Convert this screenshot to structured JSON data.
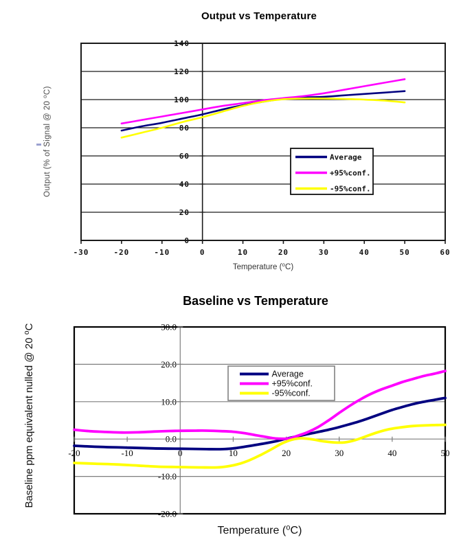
{
  "page": {
    "background": "#ffffff"
  },
  "chart_data": [
    {
      "id": "output-vs-temperature",
      "type": "line",
      "title": "Output vs Temperature",
      "xlabel": "Temperature (⁰C)",
      "ylabel": "Output (% of Signal @ 20 ⁰C)",
      "xlim": [
        -30,
        60
      ],
      "ylim": [
        0,
        140
      ],
      "grid": true,
      "legend_position": "inside-right",
      "x_ticks": [
        -30,
        -20,
        -10,
        0,
        10,
        20,
        30,
        40,
        50,
        60
      ],
      "x_tick_labels": [
        "-30",
        "-20",
        "-10",
        "0",
        "10",
        "20",
        "30",
        "40",
        "50",
        "60"
      ],
      "y_ticks": [
        0,
        20,
        40,
        60,
        80,
        100,
        120,
        140
      ],
      "y_tick_labels": [
        "0",
        "20",
        "40",
        "60",
        "80",
        "100",
        "120",
        "140"
      ],
      "series": [
        {
          "name": "Average",
          "color": "#000080",
          "x": [
            -20,
            -15,
            -10,
            -5,
            0,
            5,
            10,
            15,
            20,
            25,
            30,
            35,
            40,
            45,
            50
          ],
          "y": [
            78,
            81,
            83.5,
            86.5,
            89.5,
            93,
            96,
            98.5,
            100.5,
            101.5,
            102,
            103,
            104,
            105,
            106
          ]
        },
        {
          "name": "+95%conf.",
          "color": "#ff00ff",
          "x": [
            -20,
            -15,
            -10,
            -5,
            0,
            5,
            10,
            15,
            20,
            25,
            30,
            35,
            40,
            45,
            50
          ],
          "y": [
            83,
            85.5,
            88,
            90.5,
            93,
            95.5,
            97.5,
            99.5,
            101,
            102.5,
            104.5,
            107,
            109.5,
            112,
            114.5
          ]
        },
        {
          "name": "-95%conf.",
          "color": "#ffff00",
          "x": [
            -20,
            -15,
            -10,
            -5,
            0,
            5,
            10,
            15,
            20,
            25,
            30,
            35,
            40,
            45,
            50
          ],
          "y": [
            73,
            76.5,
            80,
            84,
            87.5,
            91.5,
            95.5,
            98.5,
            100.3,
            100.8,
            100.8,
            100.5,
            100,
            99.3,
            98
          ]
        }
      ]
    },
    {
      "id": "baseline-vs-temperature",
      "type": "line",
      "title": "Baseline vs Temperature",
      "xlabel": "Temperature (⁰C)",
      "ylabel": "Baseline ppm equivalent nulled @ 20 ⁰C",
      "xlim": [
        -20,
        50
      ],
      "ylim": [
        -20,
        30
      ],
      "grid": true,
      "legend_position": "inside-top-center",
      "x_ticks": [
        -20,
        -10,
        0,
        10,
        20,
        30,
        40,
        50
      ],
      "x_tick_labels": [
        "-20",
        "-10",
        "0",
        "10",
        "20",
        "30",
        "40",
        "50"
      ],
      "y_ticks": [
        30,
        20,
        10,
        0,
        -10,
        -20
      ],
      "y_tick_labels": [
        "30.0",
        "20.0",
        "10.0",
        "0.0",
        "-10.0",
        "-20.0"
      ],
      "series": [
        {
          "name": "Average",
          "color": "#000080",
          "x": [
            -20,
            -15,
            -10,
            -5,
            0,
            5,
            8,
            10,
            12,
            15,
            18,
            20,
            22,
            25,
            28,
            30,
            33,
            35,
            38,
            40,
            43,
            45,
            48,
            50
          ],
          "y": [
            -1.8,
            -2.1,
            -2.3,
            -2.5,
            -2.6,
            -2.7,
            -2.7,
            -2.5,
            -2.1,
            -1.4,
            -0.6,
            0.1,
            0.7,
            1.6,
            2.5,
            3.2,
            4.4,
            5.3,
            6.8,
            7.8,
            9.0,
            9.7,
            10.5,
            11.0
          ]
        },
        {
          "name": "+95%conf.",
          "color": "#ff00ff",
          "x": [
            -20,
            -17,
            -14,
            -11,
            -8,
            -5,
            -2,
            0,
            3,
            5,
            8,
            10,
            12,
            14,
            16,
            18,
            20,
            21,
            22,
            24,
            26,
            28,
            30,
            32,
            34,
            36,
            38,
            40,
            42,
            44,
            46,
            48,
            50
          ],
          "y": [
            2.5,
            2.1,
            1.9,
            1.75,
            1.8,
            2.0,
            2.15,
            2.2,
            2.25,
            2.25,
            2.1,
            1.95,
            1.6,
            1.1,
            0.6,
            0.15,
            0.1,
            0.3,
            0.8,
            1.8,
            3.2,
            5.0,
            7.0,
            8.9,
            10.6,
            12.1,
            13.3,
            14.3,
            15.3,
            16.1,
            16.9,
            17.5,
            18.2
          ]
        },
        {
          "name": "-95%conf.",
          "color": "#ffff00",
          "x": [
            -20,
            -16,
            -12,
            -8,
            -4,
            0,
            4,
            7,
            9,
            11,
            13,
            15,
            17,
            19,
            20,
            21,
            22,
            23,
            25,
            27,
            29,
            31,
            33,
            35,
            37,
            39,
            41,
            44,
            47,
            50
          ],
          "y": [
            -6.4,
            -6.6,
            -6.8,
            -7.1,
            -7.4,
            -7.5,
            -7.6,
            -7.6,
            -7.3,
            -6.7,
            -5.7,
            -4.4,
            -2.9,
            -1.3,
            -0.7,
            -0.2,
            0.1,
            0.2,
            -0.1,
            -0.6,
            -0.9,
            -0.9,
            -0.3,
            0.7,
            1.7,
            2.5,
            3.0,
            3.5,
            3.7,
            3.8
          ]
        }
      ]
    }
  ]
}
